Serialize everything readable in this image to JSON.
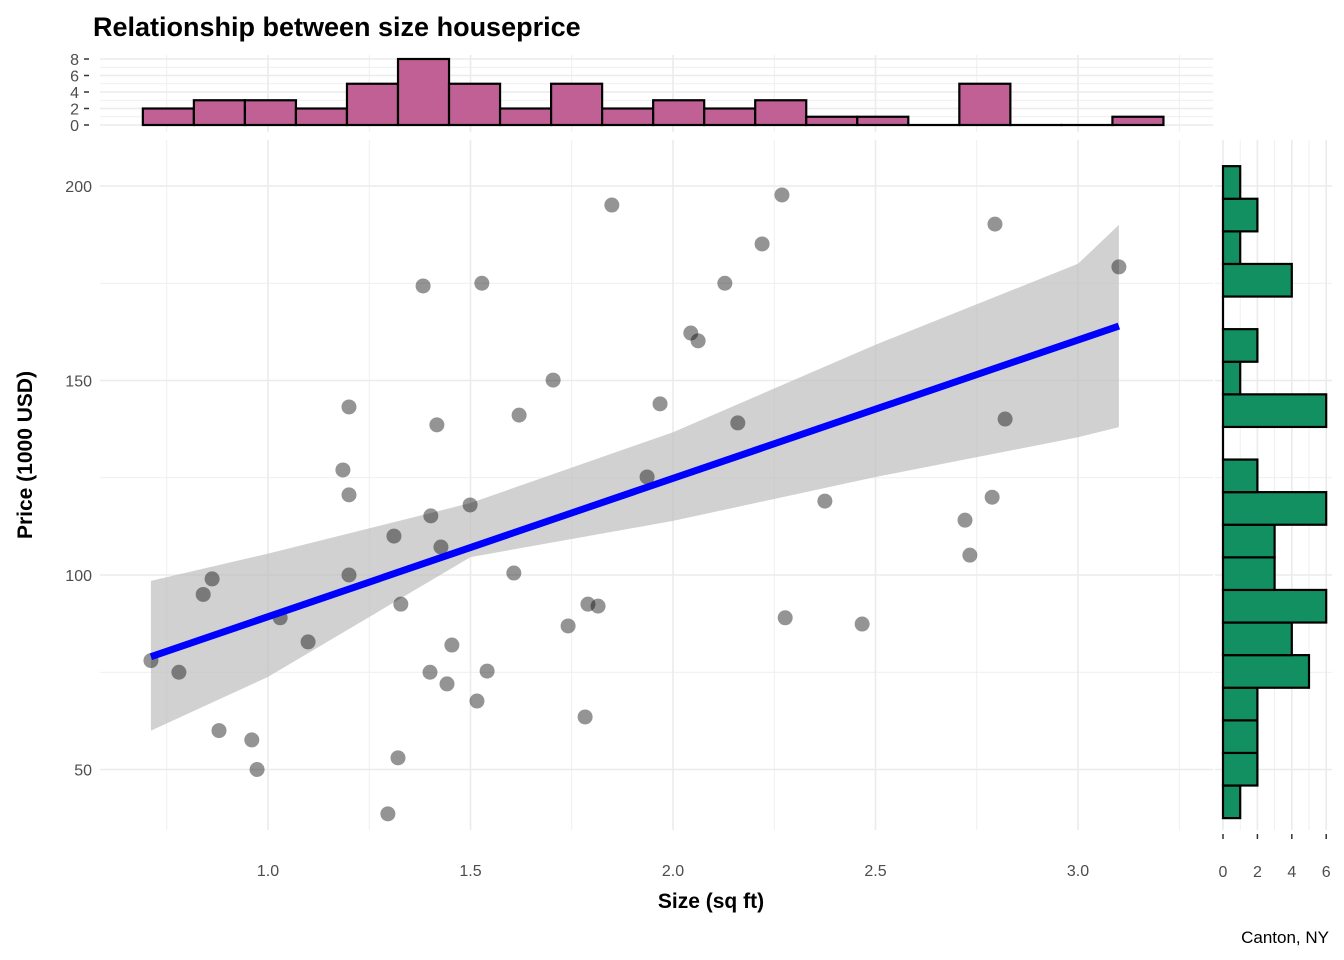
{
  "chart_data": {
    "type": "scatter",
    "title": "Relationship between size houseprice",
    "xlabel": "Size (sq ft)",
    "ylabel": "Price (1000 USD)",
    "caption": "Canton, NY",
    "xlim": [
      0.585,
      3.333
    ],
    "ylim": [
      34.4,
      211.8
    ],
    "x_ticks": [
      "1.0",
      "1.5",
      "2.0",
      "2.5",
      "3.0"
    ],
    "y_ticks": [
      "50",
      "100",
      "150",
      "200"
    ],
    "grid": true,
    "colors": {
      "points": "#808080",
      "fit_line": "#0000ff",
      "ribbon": "#bebebe",
      "top_hist": "#c06094",
      "right_hist": "#139062"
    },
    "points": [
      [
        0.711,
        78
      ],
      [
        0.78,
        75
      ],
      [
        0.84,
        95
      ],
      [
        0.862,
        99
      ],
      [
        0.879,
        60
      ],
      [
        0.96,
        57.6
      ],
      [
        0.973,
        50
      ],
      [
        1.03,
        89
      ],
      [
        1.099,
        82.8
      ],
      [
        1.185,
        127
      ],
      [
        1.2,
        143.2
      ],
      [
        1.2,
        120.6
      ],
      [
        1.2,
        100
      ],
      [
        1.296,
        38.6
      ],
      [
        1.311,
        110
      ],
      [
        1.321,
        53
      ],
      [
        1.328,
        92.5
      ],
      [
        1.383,
        174.3
      ],
      [
        1.402,
        115.2
      ],
      [
        1.4,
        75
      ],
      [
        1.417,
        138.6
      ],
      [
        1.427,
        107.2
      ],
      [
        1.442,
        72
      ],
      [
        1.454,
        82
      ],
      [
        1.499,
        118
      ],
      [
        1.516,
        67.6
      ],
      [
        1.528,
        175
      ],
      [
        1.541,
        75.3
      ],
      [
        1.607,
        100.5
      ],
      [
        1.62,
        141.1
      ],
      [
        1.704,
        150.1
      ],
      [
        1.741,
        86.9
      ],
      [
        1.783,
        63.5
      ],
      [
        1.79,
        92.5
      ],
      [
        1.815,
        92
      ],
      [
        1.849,
        195.1
      ],
      [
        1.936,
        125.2
      ],
      [
        1.968,
        144
      ],
      [
        2.044,
        162.2
      ],
      [
        2.062,
        160.2
      ],
      [
        2.128,
        175
      ],
      [
        2.16,
        139.1
      ],
      [
        2.22,
        185.1
      ],
      [
        2.269,
        197.7
      ],
      [
        2.277,
        89
      ],
      [
        2.375,
        119
      ],
      [
        2.467,
        87.4
      ],
      [
        2.721,
        114.1
      ],
      [
        2.733,
        105.1
      ],
      [
        2.788,
        120
      ],
      [
        2.795,
        190.2
      ],
      [
        2.82,
        140.1
      ],
      [
        3.101,
        179.2
      ]
    ],
    "fit_line": {
      "x": [
        0.711,
        3.101
      ],
      "y": [
        79,
        164
      ]
    },
    "ribbon": {
      "x": [
        0.711,
        1.0,
        1.5,
        2.0,
        2.5,
        3.0,
        3.101
      ],
      "lower": [
        60,
        73.8,
        104.6,
        113.9,
        125.2,
        135.4,
        138
      ],
      "upper": [
        98.5,
        105.5,
        118.5,
        136.7,
        159.2,
        180,
        190
      ]
    },
    "top_histogram": {
      "bin_start": 0.691,
      "bin_width": 0.126,
      "counts": [
        2,
        3,
        3,
        2,
        5,
        8,
        5,
        2,
        5,
        2,
        3,
        2,
        3,
        1,
        1,
        0,
        5,
        0,
        0,
        1
      ],
      "y_ticks": [
        "0",
        "2",
        "4",
        "6",
        "8"
      ],
      "ylim": [
        0,
        8
      ]
    },
    "right_histogram": {
      "bin_start": 37.5,
      "bin_width": 8.38,
      "counts": [
        1,
        2,
        2,
        2,
        5,
        4,
        6,
        3,
        3,
        6,
        2,
        0,
        6,
        1,
        2,
        0,
        4,
        1,
        2,
        1
      ],
      "x_ticks": [
        "0",
        "2",
        "4",
        "6"
      ],
      "xlim": [
        0,
        6
      ]
    }
  }
}
